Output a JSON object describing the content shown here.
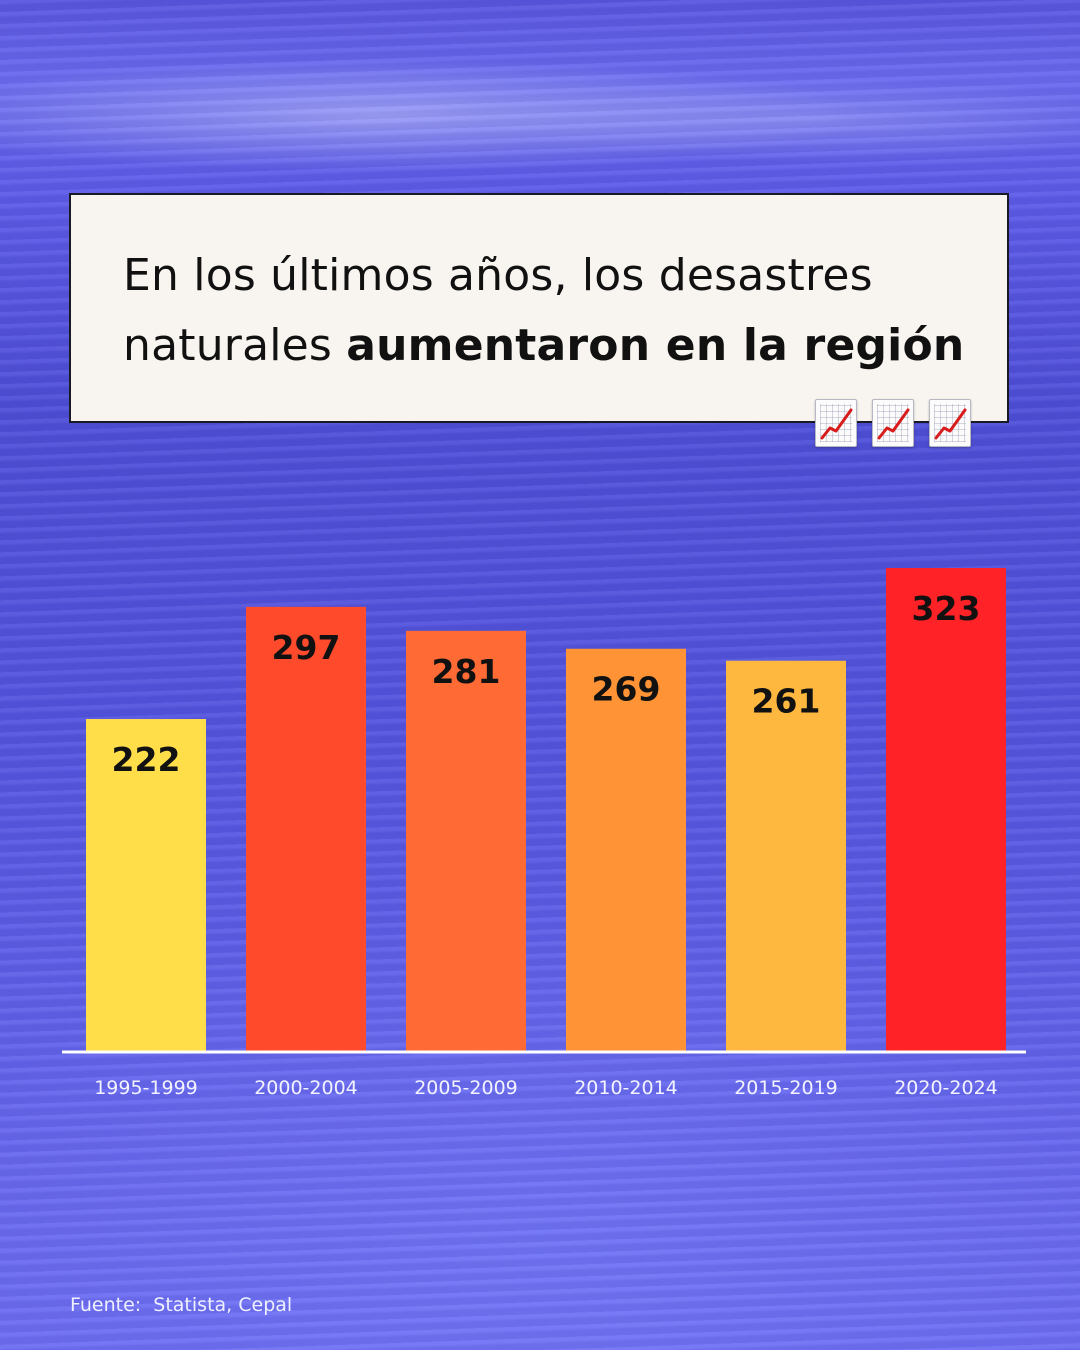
{
  "title": {
    "regular": "En los últimos años, los desastres naturales ",
    "bold": "aumentaron en la región"
  },
  "icons": [
    "chart-increasing-icon",
    "chart-increasing-icon",
    "chart-increasing-icon"
  ],
  "source": "Fuente:  Statista, Cepal",
  "chart_data": {
    "type": "bar",
    "title": "En los últimos años, los desastres naturales aumentaron en la región",
    "xlabel": "",
    "ylabel": "",
    "categories": [
      "1995-1999",
      "2000-2004",
      "2005-2009",
      "2010-2014",
      "2015-2019",
      "2020-2024"
    ],
    "values": [
      222,
      297,
      281,
      269,
      261,
      323
    ],
    "colors": [
      "#ffde4a",
      "#ff4a2b",
      "#ff6a35",
      "#ff9336",
      "#ffb83f",
      "#ff2226"
    ],
    "ylim": [
      0,
      323
    ],
    "grid": false,
    "legend": "none"
  }
}
